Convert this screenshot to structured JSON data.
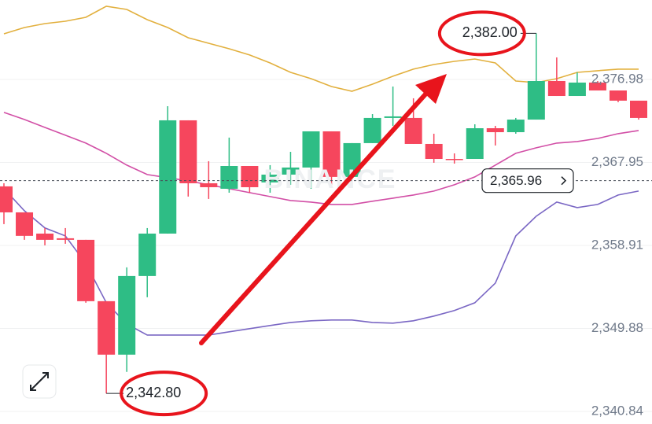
{
  "chart_data": {
    "type": "candlestick",
    "watermark": "BINANCE",
    "ylim": [
      2339.47,
      2385.63
    ],
    "yticks": [
      {
        "value": 2376.98,
        "label": "2,376.98"
      },
      {
        "value": 2367.95,
        "label": "2,367.95"
      },
      {
        "value": 2358.91,
        "label": "2,358.91"
      },
      {
        "value": 2349.88,
        "label": "2,349.88"
      },
      {
        "value": 2340.84,
        "label": "2,340.84"
      }
    ],
    "grid": true,
    "up_color": "#2ebd85",
    "down_color": "#f6465d",
    "candles": {
      "open": [
        2365.34,
        2362.51,
        2360.2,
        2359.69,
        2359.52,
        2352.84,
        2347.02,
        2355.58,
        2360.2,
        2372.53,
        2365.68,
        2365.08,
        2367.56,
        2365.77,
        2366.62,
        2367.39,
        2371.33,
        2366.37,
        2370.05,
        2372.79,
        2372.79,
        2369.96,
        2368.33,
        2368.33,
        2371.67,
        2371.24,
        2372.61,
        2376.81,
        2375.18,
        2376.64,
        2375.78,
        2374.67
      ],
      "close": [
        2362.51,
        2359.95,
        2359.52,
        2359.52,
        2352.84,
        2347.02,
        2355.58,
        2360.2,
        2372.53,
        2365.68,
        2365.25,
        2367.56,
        2365.25,
        2366.62,
        2367.39,
        2371.33,
        2366.37,
        2370.05,
        2372.79,
        2372.96,
        2369.96,
        2368.33,
        2368.25,
        2371.67,
        2371.24,
        2372.61,
        2376.81,
        2375.18,
        2376.64,
        2375.78,
        2374.67,
        2372.79
      ],
      "high": [
        2365.68,
        2362.51,
        2360.8,
        2360.8,
        2359.52,
        2352.84,
        2356.52,
        2360.8,
        2374.07,
        2372.53,
        2368.08,
        2370.65,
        2367.56,
        2367.65,
        2369.1,
        2371.33,
        2371.33,
        2370.05,
        2373.21,
        2376.21,
        2374.93,
        2371.07,
        2368.93,
        2372.1,
        2371.93,
        2372.79,
        2382.0,
        2379.38,
        2377.75,
        2376.81,
        2375.78,
        2374.67
      ],
      "low": [
        2361.23,
        2359.52,
        2358.92,
        2359.09,
        2352.67,
        2342.8,
        2345.14,
        2353.27,
        2360.2,
        2364.23,
        2363.97,
        2364.65,
        2364.65,
        2364.65,
        2365.51,
        2365.08,
        2365.51,
        2366.37,
        2370.05,
        2371.93,
        2369.96,
        2367.91,
        2367.82,
        2368.33,
        2369.79,
        2371.07,
        2372.61,
        2375.18,
        2375.18,
        2375.78,
        2374.5,
        2372.61
      ]
    },
    "series": [
      {
        "color": "#e2b03e",
        "values": [
          2381.95,
          2382.63,
          2383.06,
          2383.32,
          2383.75,
          2384.95,
          2384.6,
          2383.49,
          2382.63,
          2381.52,
          2380.92,
          2380.32,
          2379.64,
          2378.78,
          2377.75,
          2377.07,
          2376.21,
          2375.7,
          2376.47,
          2377.33,
          2378.1,
          2378.61,
          2378.95,
          2379.21,
          2378.78,
          2376.81,
          2376.64,
          2377.07,
          2377.75,
          2377.93,
          2378.1,
          2378.1
        ]
      },
      {
        "color": "#d24fa6",
        "values": [
          2373.39,
          2372.62,
          2371.76,
          2370.91,
          2370.05,
          2368.94,
          2367.65,
          2366.63,
          2366.28,
          2365.94,
          2365.51,
          2365.09,
          2364.66,
          2364.23,
          2363.8,
          2363.63,
          2363.37,
          2363.37,
          2363.72,
          2364.06,
          2364.4,
          2364.83,
          2365.51,
          2366.37,
          2367.65,
          2368.94,
          2369.54,
          2370.05,
          2370.22,
          2370.56,
          2371.08,
          2371.42
        ]
      },
      {
        "color": "#7a67c4",
        "values": [
          2365.09,
          2362.69,
          2360.81,
          2359.95,
          2356.95,
          2352.67,
          2350.36,
          2349.16,
          2349.16,
          2349.16,
          2349.16,
          2349.51,
          2349.85,
          2350.19,
          2350.53,
          2350.71,
          2350.79,
          2350.79,
          2350.53,
          2350.45,
          2350.71,
          2351.22,
          2351.82,
          2352.67,
          2354.81,
          2359.95,
          2362.09,
          2363.63,
          2363.03,
          2363.37,
          2364.4,
          2364.83
        ]
      }
    ],
    "last_price": {
      "value": 2365.96,
      "label": "2,365.96"
    },
    "annotations": [
      {
        "value": 2382.0,
        "label": "2,382.00"
      },
      {
        "value": 2342.8,
        "label": "2,342.80"
      }
    ]
  }
}
